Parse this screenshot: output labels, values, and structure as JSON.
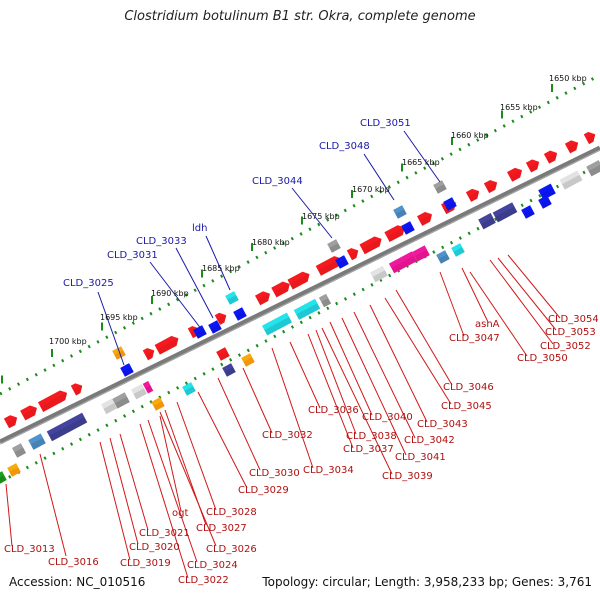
{
  "title": "Clostridium botulinum B1 str. Okra, complete genome",
  "footer": {
    "accession": "Accession: NC_010516",
    "summary": "Topology: circular; Length: 3,958,233 bp; Genes: 3,761"
  },
  "ruler_labels": [
    "1650 kbp",
    "1655 kbp",
    "1660 kbp",
    "1665 kbp",
    "1670 kbp",
    "1675 kbp",
    "1680 kbp",
    "1685 kbp",
    "1690 kbp",
    "1695 kbp",
    "1700 kbp"
  ],
  "upper_labels": [
    "CLD_3051",
    "CLD_3048",
    "CLD_3044",
    "ldh",
    "CLD_3033",
    "CLD_3031",
    "CLD_3025"
  ],
  "lower_labels": [
    "CLD_3054",
    "CLD_3053",
    "CLD_3052",
    "CLD_3050",
    "asnA",
    "CLD_3047",
    "CLD_3046",
    "CLD_3045",
    "CLD_3043",
    "CLD_3042",
    "CLD_3041",
    "CLD_3040",
    "CLD_3039",
    "CLD_3038",
    "CLD_3037",
    "CLD_3036",
    "CLD_3034",
    "CLD_3032",
    "CLD_3030",
    "CLD_3029",
    "CLD_3028",
    "CLD_3027",
    "CLD_3026",
    "ogt",
    "CLD_3024",
    "CLD_3022",
    "CLD_3021",
    "CLD_3020",
    "CLD_3019",
    "CLD_3016",
    "CLD_3013"
  ],
  "colors": {
    "red": "#e8181c",
    "cyan": "#1fc8d2",
    "magenta": "#e0148c",
    "navy": "#3c3c8c",
    "blue": "#0a14e6",
    "steel": "#4682b4",
    "orange": "#f0960a",
    "gray": "#8c8c8c",
    "lightgray": "#c8c8c8",
    "green": "#1a8c1a",
    "backbone": "#7a7a7a"
  }
}
